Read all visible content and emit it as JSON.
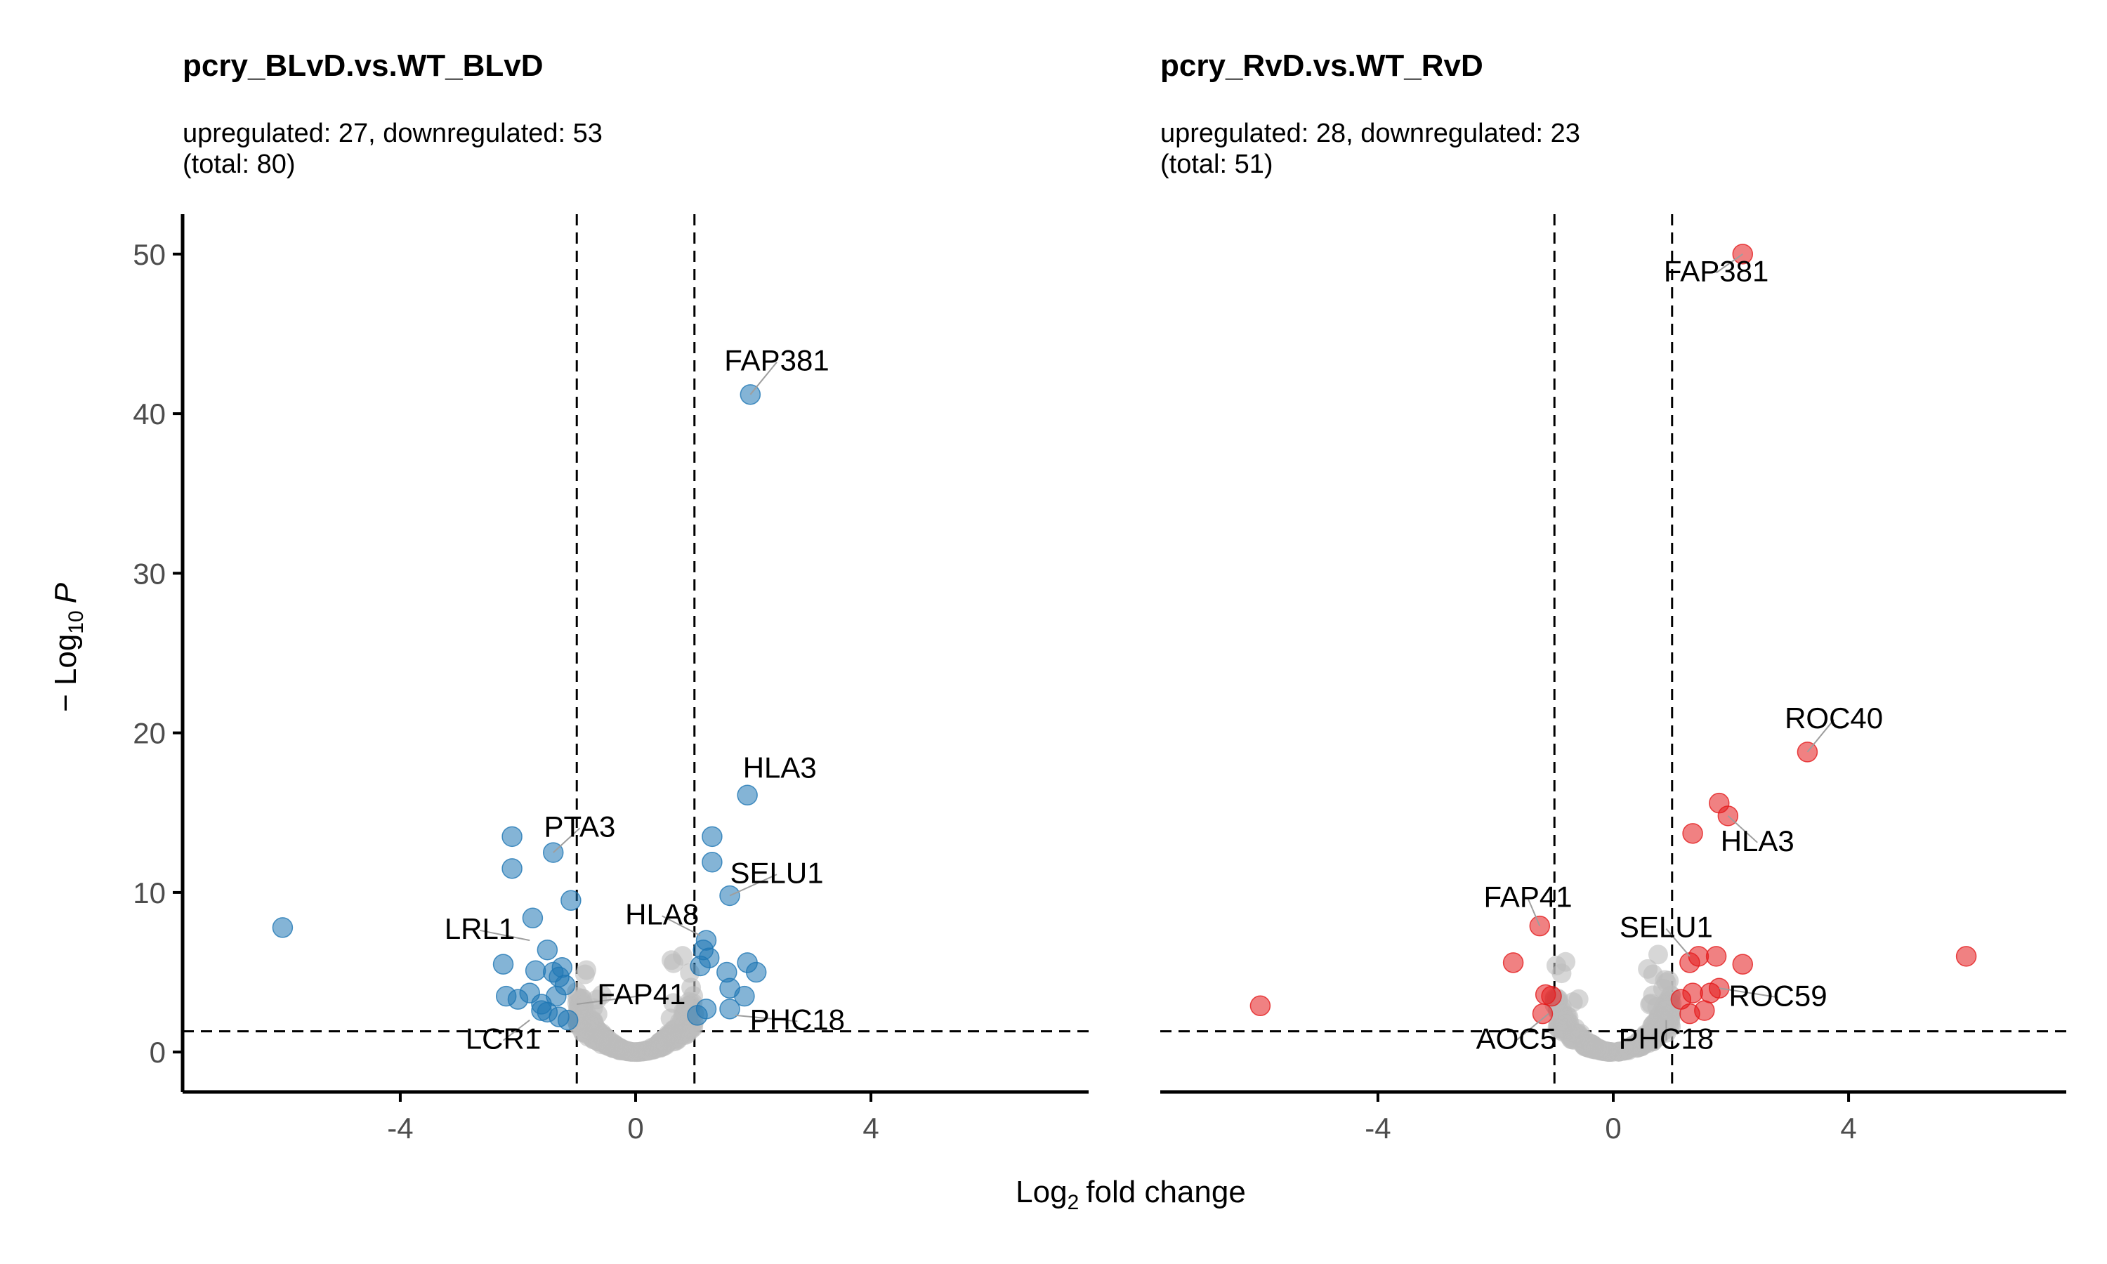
{
  "colors": {
    "ns": "#bdbdbd",
    "down": "#1f77b4",
    "up": "#e41a1c"
  },
  "shared": {
    "xlabel": "fold change",
    "xlabel_prefix": "Log",
    "xlabel_sub": "2",
    "ylabel_prefix": "− Log",
    "ylabel_sub": "10",
    "ylabel_var": "P",
    "x_ticks": [
      -4,
      0,
      4
    ],
    "y_ticks": [
      0,
      10,
      20,
      30,
      40,
      50
    ],
    "xlim": [
      -7.7,
      7.7
    ],
    "ylim": [
      -2.5,
      52.5
    ],
    "fc_cutoffs": [
      -1,
      1
    ],
    "p_cutoff": 1.3
  },
  "chart_data": [
    {
      "type": "scatter",
      "title": "pcry_BLvD.vs.WT_BLvD",
      "subtitle_line1": "upregulated: 27, downregulated: 53",
      "subtitle_line2": "(total: 80)",
      "highlight": "down",
      "significant": [
        {
          "x": -6.0,
          "y": 7.8
        },
        {
          "x": -2.1,
          "y": 13.5
        },
        {
          "x": -2.1,
          "y": 11.5
        },
        {
          "x": -1.4,
          "y": 12.5
        },
        {
          "x": -1.75,
          "y": 8.4
        },
        {
          "x": -1.1,
          "y": 9.5
        },
        {
          "x": -2.25,
          "y": 5.5
        },
        {
          "x": -1.5,
          "y": 6.4
        },
        {
          "x": -1.7,
          "y": 5.1
        },
        {
          "x": -1.4,
          "y": 5.0
        },
        {
          "x": -1.3,
          "y": 4.7
        },
        {
          "x": -1.2,
          "y": 4.2
        },
        {
          "x": -2.2,
          "y": 3.5
        },
        {
          "x": -2.0,
          "y": 3.3
        },
        {
          "x": -1.8,
          "y": 3.7
        },
        {
          "x": -1.6,
          "y": 3.0
        },
        {
          "x": -1.5,
          "y": 2.5
        },
        {
          "x": -1.3,
          "y": 2.2
        },
        {
          "x": -1.15,
          "y": 2.0
        },
        {
          "x": -1.6,
          "y": 2.6
        },
        {
          "x": -1.35,
          "y": 3.5
        },
        {
          "x": -1.25,
          "y": 5.3
        },
        {
          "x": 1.3,
          "y": 13.5
        },
        {
          "x": 1.3,
          "y": 11.9
        },
        {
          "x": 1.9,
          "y": 16.1
        },
        {
          "x": 1.95,
          "y": 41.2
        },
        {
          "x": 1.6,
          "y": 9.8
        },
        {
          "x": 1.2,
          "y": 7.0
        },
        {
          "x": 1.15,
          "y": 6.4
        },
        {
          "x": 1.25,
          "y": 5.9
        },
        {
          "x": 1.1,
          "y": 5.4
        },
        {
          "x": 1.55,
          "y": 5.0
        },
        {
          "x": 1.9,
          "y": 5.6
        },
        {
          "x": 2.05,
          "y": 5.0
        },
        {
          "x": 1.6,
          "y": 4.0
        },
        {
          "x": 1.85,
          "y": 3.5
        },
        {
          "x": 1.6,
          "y": 2.7
        },
        {
          "x": 1.2,
          "y": 2.7
        },
        {
          "x": 1.05,
          "y": 2.3
        }
      ],
      "labels": [
        {
          "text": "FAP381",
          "x": 1.95,
          "y": 41.2,
          "lx": 2.4,
          "ly": 42.7,
          "arrow": true
        },
        {
          "text": "HLA3",
          "x": 1.9,
          "y": 16.1,
          "lx": 2.45,
          "ly": 17.2,
          "arrow": false
        },
        {
          "text": "SELU1",
          "x": 1.6,
          "y": 9.8,
          "lx": 2.4,
          "ly": 10.6,
          "arrow": true
        },
        {
          "text": "PTA3",
          "x": -1.4,
          "y": 12.5,
          "lx": -0.95,
          "ly": 13.5,
          "arrow": true
        },
        {
          "text": "HLA8",
          "x": 1.1,
          "y": 7.3,
          "lx": 0.45,
          "ly": 8.0,
          "arrow": true
        },
        {
          "text": "LRL1",
          "x": -1.8,
          "y": 7.0,
          "lx": -2.65,
          "ly": 7.1,
          "arrow": true
        },
        {
          "text": "FAP41",
          "x": -1.0,
          "y": 3.0,
          "lx": 0.1,
          "ly": 3.0,
          "arrow": true
        },
        {
          "text": "LCR1",
          "x": -1.8,
          "y": 2.0,
          "lx": -2.25,
          "ly": 0.2,
          "arrow": true
        },
        {
          "text": "PHC18",
          "x": 1.7,
          "y": 2.3,
          "lx": 2.75,
          "ly": 1.4,
          "arrow": true
        }
      ]
    },
    {
      "type": "scatter",
      "title": "pcry_RvD.vs.WT_RvD",
      "subtitle_line1": "upregulated: 28, downregulated: 23",
      "subtitle_line2": "(total: 51)",
      "highlight": "up",
      "significant": [
        {
          "x": 2.2,
          "y": 50.0
        },
        {
          "x": 3.3,
          "y": 18.8
        },
        {
          "x": 1.8,
          "y": 15.6
        },
        {
          "x": 1.95,
          "y": 14.8
        },
        {
          "x": 1.35,
          "y": 13.7
        },
        {
          "x": 6.0,
          "y": 6.0
        },
        {
          "x": 1.75,
          "y": 6.0
        },
        {
          "x": 2.2,
          "y": 5.5
        },
        {
          "x": 1.3,
          "y": 5.6
        },
        {
          "x": 1.45,
          "y": 6.0
        },
        {
          "x": 1.8,
          "y": 4.0
        },
        {
          "x": 1.65,
          "y": 3.7
        },
        {
          "x": 1.35,
          "y": 3.7
        },
        {
          "x": 1.15,
          "y": 3.3
        },
        {
          "x": 1.3,
          "y": 2.4
        },
        {
          "x": 1.55,
          "y": 2.6
        },
        {
          "x": -6.0,
          "y": 2.9
        },
        {
          "x": -1.25,
          "y": 7.9
        },
        {
          "x": -1.7,
          "y": 5.6
        },
        {
          "x": -1.05,
          "y": 3.5
        },
        {
          "x": -1.15,
          "y": 3.6
        },
        {
          "x": -1.2,
          "y": 2.4
        }
      ],
      "labels": [
        {
          "text": "FAP381",
          "x": 2.2,
          "y": 50.0,
          "lx": 1.75,
          "ly": 48.3,
          "arrow": true
        },
        {
          "text": "ROC40",
          "x": 3.3,
          "y": 18.8,
          "lx": 3.75,
          "ly": 20.3,
          "arrow": true
        },
        {
          "text": "HLA3",
          "x": 1.95,
          "y": 14.8,
          "lx": 2.45,
          "ly": 12.6,
          "arrow": true
        },
        {
          "text": "FAP41",
          "x": -1.25,
          "y": 7.9,
          "lx": -1.45,
          "ly": 9.1,
          "arrow": true
        },
        {
          "text": "SELU1",
          "x": 1.3,
          "y": 6.0,
          "lx": 0.9,
          "ly": 7.2,
          "arrow": true
        },
        {
          "text": "ROC59",
          "x": 1.8,
          "y": 4.0,
          "lx": 2.8,
          "ly": 2.9,
          "arrow": true
        },
        {
          "text": "AOC5",
          "x": -1.1,
          "y": 2.4,
          "lx": -1.65,
          "ly": 0.2,
          "arrow": true
        },
        {
          "text": "PHC18",
          "x": 0.9,
          "y": 2.0,
          "lx": 0.9,
          "ly": 0.2,
          "arrow": true
        }
      ]
    }
  ]
}
